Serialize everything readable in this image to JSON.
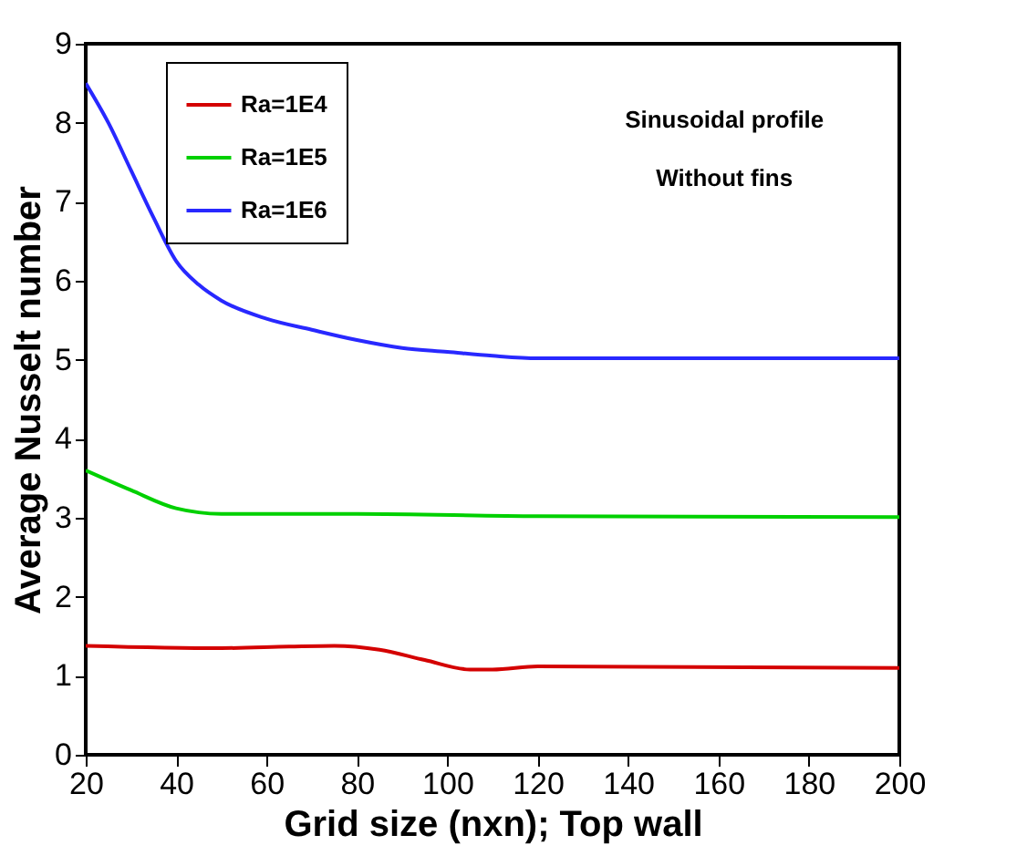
{
  "chart_data": {
    "type": "line",
    "xlabel": "Grid size (nxn); Top wall",
    "ylabel": "Average Nusselt number",
    "xlim": [
      20,
      200
    ],
    "xticks": [
      20,
      40,
      60,
      80,
      100,
      120,
      140,
      160,
      180,
      200
    ],
    "ylim": [
      0,
      9
    ],
    "yticks": [
      0,
      1,
      2,
      3,
      4,
      5,
      6,
      7,
      8,
      9
    ],
    "grid": false,
    "legend": "top left",
    "marker": "none",
    "line_style": "solid",
    "annotations": [
      "Sinusoidal profile",
      "Without fins"
    ],
    "series": [
      {
        "name": "Ra=1E4",
        "color": "#d40000",
        "x": [
          20,
          50,
          65,
          75,
          85,
          95,
          105,
          110,
          120,
          200
        ],
        "values": [
          1.38,
          1.35,
          1.37,
          1.38,
          1.33,
          1.2,
          1.08,
          1.08,
          1.12,
          1.1
        ]
      },
      {
        "name": "Ra=1E5",
        "color": "#00d000",
        "x": [
          20,
          30,
          40,
          50,
          80,
          120,
          200
        ],
        "values": [
          3.6,
          3.35,
          3.12,
          3.05,
          3.05,
          3.02,
          3.01
        ]
      },
      {
        "name": "Ra=1E6",
        "color": "#2828ff",
        "x": [
          20,
          25,
          30,
          35,
          40,
          45,
          50,
          60,
          70,
          80,
          90,
          100,
          110,
          120,
          200
        ],
        "values": [
          8.5,
          8.0,
          7.4,
          6.8,
          6.25,
          5.95,
          5.75,
          5.52,
          5.38,
          5.25,
          5.15,
          5.1,
          5.05,
          5.02,
          5.02
        ]
      }
    ]
  }
}
